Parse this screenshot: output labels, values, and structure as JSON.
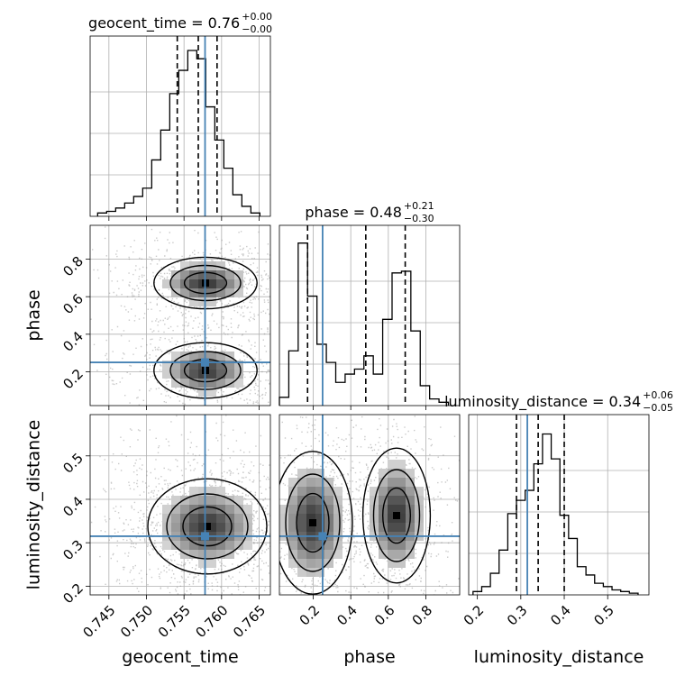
{
  "chart_data": {
    "type": "corner",
    "parameters": [
      "geocent_time",
      "phase",
      "luminosity_distance"
    ],
    "axis_labels": {
      "geocent_time": "geocent_time",
      "phase": "phase",
      "luminosity_distance": "luminosity_distance"
    },
    "ranges": {
      "geocent_time": [
        0.7425,
        0.7665
      ],
      "phase": [
        0.02,
        0.98
      ],
      "luminosity_distance": [
        0.18,
        0.595
      ]
    },
    "ticks": {
      "geocent_time": [
        "0.745",
        "0.750",
        "0.755",
        "0.760",
        "0.765"
      ],
      "phase": [
        "0.2",
        "0.4",
        "0.6",
        "0.8"
      ],
      "luminosity_distance": [
        "0.2",
        "0.3",
        "0.4",
        "0.5"
      ]
    },
    "titles": {
      "geocent_time": {
        "name": "geocent_time",
        "median": "0.76",
        "plus": "+0.00",
        "minus": "−0.00"
      },
      "phase": {
        "name": "phase",
        "median": "0.48",
        "plus": "+0.21",
        "minus": "−0.30"
      },
      "luminosity_distance": {
        "name": "luminosity_distance",
        "median": "0.34",
        "plus": "+0.06",
        "minus": "−0.05"
      }
    },
    "injection": {
      "geocent_time": 0.7578,
      "phase": 0.25,
      "luminosity_distance": 0.315
    },
    "quantiles": {
      "geocent_time": [
        0.7541,
        0.7569,
        0.7594
      ],
      "phase": [
        0.17,
        0.48,
        0.69
      ],
      "luminosity_distance": [
        0.29,
        0.34,
        0.4
      ]
    },
    "histograms": {
      "geocent_time": {
        "edges": [
          0.7435,
          0.7447,
          0.7459,
          0.7471,
          0.7483,
          0.7495,
          0.7507,
          0.7519,
          0.7531,
          0.7543,
          0.7555,
          0.7567,
          0.7579,
          0.7591,
          0.7603,
          0.7615,
          0.7627,
          0.7639,
          0.7651
        ],
        "counts": [
          0.02,
          0.03,
          0.05,
          0.08,
          0.12,
          0.17,
          0.34,
          0.52,
          0.74,
          0.88,
          1.0,
          0.95,
          0.66,
          0.46,
          0.29,
          0.13,
          0.06,
          0.02
        ]
      },
      "phase": {
        "edges": [
          0.02,
          0.07,
          0.12,
          0.17,
          0.22,
          0.27,
          0.32,
          0.37,
          0.42,
          0.47,
          0.52,
          0.57,
          0.62,
          0.67,
          0.72,
          0.77,
          0.82,
          0.87,
          0.92
        ],
        "counts": [
          0.05,
          0.33,
          0.98,
          0.66,
          0.37,
          0.26,
          0.14,
          0.19,
          0.22,
          0.3,
          0.19,
          0.52,
          0.8,
          0.81,
          0.45,
          0.12,
          0.04,
          0.02
        ]
      },
      "luminosity_distance": {
        "edges": [
          0.19,
          0.21,
          0.23,
          0.25,
          0.27,
          0.29,
          0.31,
          0.33,
          0.35,
          0.37,
          0.39,
          0.41,
          0.43,
          0.45,
          0.47,
          0.49,
          0.51,
          0.53,
          0.55,
          0.57
        ],
        "counts": [
          0.02,
          0.05,
          0.13,
          0.27,
          0.49,
          0.57,
          0.63,
          0.79,
          0.97,
          0.82,
          0.48,
          0.34,
          0.17,
          0.12,
          0.07,
          0.05,
          0.03,
          0.02,
          0.01
        ]
      }
    },
    "contour_levels": 3,
    "grid": true
  }
}
